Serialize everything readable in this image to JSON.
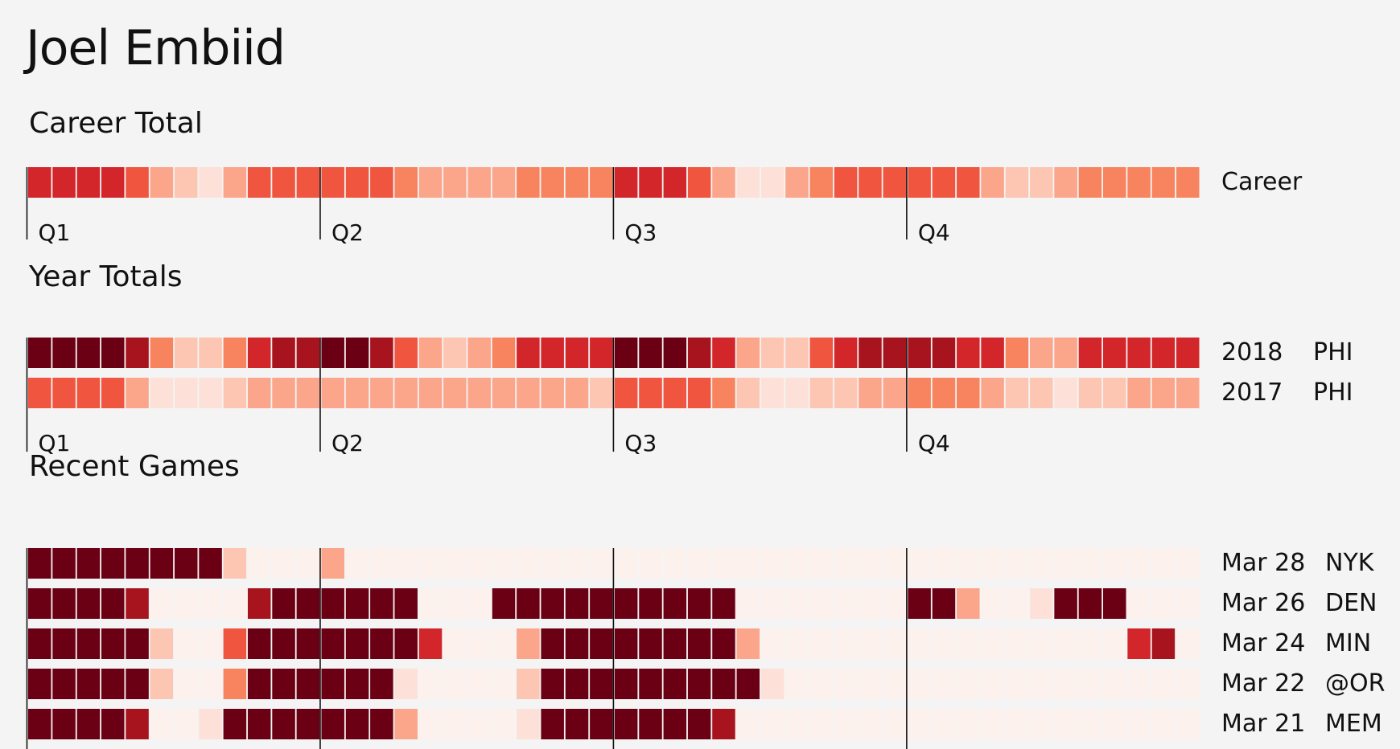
{
  "player": "Joel Embiid",
  "sections": {
    "career": "Career Total",
    "years": "Year Totals",
    "games": "Recent Games"
  },
  "quarters": [
    "Q1",
    "Q2",
    "Q3",
    "Q4"
  ],
  "chart_data": {
    "type": "heatmap",
    "title": "Joel Embiid",
    "columns_per_quarter": 12,
    "value_scale": "0 (lightest) to 8 (darkest red)",
    "colors": [
      "#fdf1ee",
      "#fde1d8",
      "#fcc6b2",
      "#fba58a",
      "#f7835f",
      "#ef553f",
      "#d2262a",
      "#a8141d",
      "#6b0014"
    ],
    "groups": [
      {
        "name": "Career Total",
        "rows": [
          {
            "label": "Career",
            "values": [
              6,
              6,
              6,
              6,
              5,
              3,
              2,
              1,
              3,
              5,
              5,
              5,
              5,
              5,
              5,
              4,
              3,
              3,
              3,
              3,
              4,
              4,
              4,
              4,
              6,
              6,
              6,
              5,
              3,
              1,
              1,
              3,
              4,
              5,
              5,
              5,
              5,
              5,
              5,
              3,
              2,
              2,
              3,
              4,
              4,
              4,
              4,
              4
            ]
          }
        ]
      },
      {
        "name": "Year Totals",
        "rows": [
          {
            "label": "2018",
            "team": "PHI",
            "values": [
              8,
              8,
              8,
              8,
              7,
              4,
              2,
              2,
              4,
              6,
              7,
              7,
              8,
              8,
              7,
              5,
              3,
              2,
              3,
              4,
              6,
              6,
              6,
              6,
              8,
              8,
              8,
              7,
              6,
              3,
              2,
              2,
              5,
              6,
              7,
              7,
              7,
              7,
              6,
              6,
              4,
              3,
              3,
              6,
              6,
              6,
              6,
              6
            ]
          },
          {
            "label": "2017",
            "team": "PHI",
            "values": [
              5,
              5,
              5,
              5,
              3,
              1,
              1,
              1,
              2,
              3,
              3,
              3,
              3,
              3,
              3,
              3,
              3,
              3,
              3,
              3,
              3,
              3,
              3,
              2,
              5,
              5,
              5,
              5,
              4,
              2,
              1,
              1,
              2,
              2,
              3,
              3,
              4,
              4,
              4,
              3,
              2,
              2,
              1,
              2,
              2,
              3,
              3,
              3
            ]
          }
        ]
      },
      {
        "name": "Recent Games",
        "rows": [
          {
            "label": "Mar 28",
            "team": "NYK",
            "values": [
              8,
              8,
              8,
              8,
              8,
              8,
              8,
              8,
              2,
              0,
              0,
              0,
              3,
              0,
              0,
              0,
              0,
              0,
              0,
              0,
              0,
              0,
              0,
              0,
              0,
              0,
              0,
              0,
              0,
              0,
              0,
              0,
              0,
              0,
              0,
              0,
              0,
              0,
              0,
              0,
              0,
              0,
              0,
              0,
              0,
              0,
              0,
              0
            ]
          },
          {
            "label": "Mar 26",
            "team": "DEN",
            "values": [
              8,
              8,
              8,
              8,
              7,
              0,
              0,
              0,
              0,
              7,
              8,
              8,
              8,
              8,
              8,
              8,
              0,
              0,
              0,
              8,
              8,
              8,
              8,
              8,
              8,
              8,
              8,
              8,
              8,
              0,
              0,
              0,
              0,
              0,
              0,
              0,
              8,
              8,
              3,
              0,
              0,
              1,
              8,
              8,
              8,
              0,
              0,
              0
            ]
          },
          {
            "label": "Mar 24",
            "team": "MIN",
            "values": [
              8,
              8,
              8,
              8,
              8,
              2,
              0,
              0,
              5,
              8,
              8,
              8,
              8,
              8,
              8,
              8,
              6,
              0,
              0,
              0,
              3,
              8,
              8,
              8,
              8,
              8,
              8,
              8,
              8,
              3,
              0,
              0,
              0,
              0,
              0,
              0,
              0,
              0,
              0,
              0,
              0,
              0,
              0,
              0,
              0,
              6,
              7,
              0
            ]
          },
          {
            "label": "Mar 22",
            "team": "@OR",
            "values": [
              8,
              8,
              8,
              8,
              8,
              2,
              0,
              0,
              4,
              8,
              8,
              8,
              8,
              8,
              8,
              1,
              0,
              0,
              0,
              0,
              2,
              8,
              8,
              8,
              8,
              8,
              8,
              8,
              8,
              8,
              1,
              0,
              0,
              0,
              0,
              0,
              0,
              0,
              0,
              0,
              0,
              0,
              0,
              0,
              0,
              0,
              0,
              0
            ]
          },
          {
            "label": "Mar 21",
            "team": "MEM",
            "values": [
              8,
              8,
              8,
              8,
              7,
              0,
              0,
              1,
              8,
              8,
              8,
              8,
              8,
              8,
              8,
              3,
              0,
              0,
              0,
              0,
              1,
              8,
              8,
              8,
              8,
              8,
              8,
              8,
              7,
              0,
              0,
              0,
              0,
              0,
              0,
              0,
              0,
              0,
              0,
              0,
              0,
              0,
              0,
              0,
              0,
              0,
              0,
              0
            ]
          }
        ]
      }
    ]
  }
}
